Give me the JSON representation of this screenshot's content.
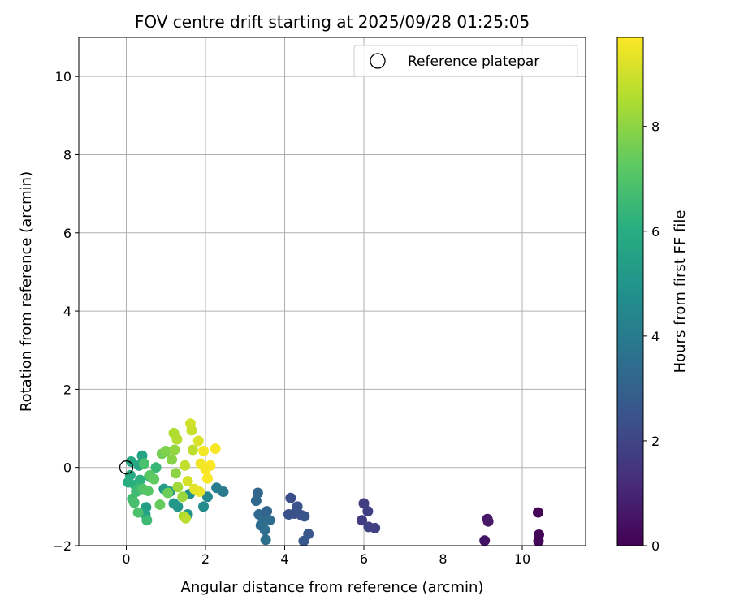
{
  "chart_data": {
    "type": "scatter",
    "title": "FOV centre drift starting at 2025/09/28 01:25:05",
    "xlabel": "Angular distance from reference (arcmin)",
    "ylabel": "Rotation from reference (arcmin)",
    "xlim": [
      -1.2,
      11.6
    ],
    "ylim": [
      -2.0,
      11.0
    ],
    "x_ticks": [
      0,
      2,
      4,
      6,
      8,
      10
    ],
    "y_ticks": [
      -2,
      0,
      2,
      4,
      6,
      8,
      10
    ],
    "grid": true,
    "legend": {
      "placement": "top-right",
      "entries": [
        "Reference platepar"
      ]
    },
    "reference_point": {
      "x": 0,
      "y": 0
    },
    "colorbar": {
      "label": "Hours from first FF file",
      "colormap": "viridis",
      "range": [
        0,
        9.7
      ],
      "ticks": [
        0,
        2,
        4,
        6,
        8
      ]
    },
    "series": [
      {
        "points": [
          {
            "x": 10.4,
            "y": -1.15,
            "t": 0.1
          },
          {
            "x": 10.42,
            "y": -1.72,
            "t": 0.15
          },
          {
            "x": 10.41,
            "y": -1.88,
            "t": 0.2
          },
          {
            "x": 9.12,
            "y": -1.32,
            "t": 0.6
          },
          {
            "x": 9.14,
            "y": -1.38,
            "t": 0.65
          },
          {
            "x": 9.05,
            "y": -1.87,
            "t": 0.5
          },
          {
            "x": 6.0,
            "y": -0.92,
            "t": 1.7
          },
          {
            "x": 6.1,
            "y": -1.12,
            "t": 1.8
          },
          {
            "x": 5.95,
            "y": -1.35,
            "t": 1.75
          },
          {
            "x": 6.12,
            "y": -1.52,
            "t": 1.9
          },
          {
            "x": 6.28,
            "y": -1.55,
            "t": 1.85
          },
          {
            "x": 4.15,
            "y": -0.78,
            "t": 2.3
          },
          {
            "x": 4.1,
            "y": -1.2,
            "t": 2.4
          },
          {
            "x": 4.25,
            "y": -1.18,
            "t": 2.35
          },
          {
            "x": 4.32,
            "y": -1.0,
            "t": 2.45
          },
          {
            "x": 4.42,
            "y": -1.22,
            "t": 2.5
          },
          {
            "x": 4.5,
            "y": -1.25,
            "t": 2.55
          },
          {
            "x": 4.6,
            "y": -1.7,
            "t": 2.6
          },
          {
            "x": 4.48,
            "y": -1.88,
            "t": 2.65
          },
          {
            "x": 3.32,
            "y": -0.65,
            "t": 3.2
          },
          {
            "x": 3.28,
            "y": -0.85,
            "t": 3.25
          },
          {
            "x": 3.35,
            "y": -1.2,
            "t": 3.3
          },
          {
            "x": 3.45,
            "y": -1.25,
            "t": 3.35
          },
          {
            "x": 3.55,
            "y": -1.12,
            "t": 3.1
          },
          {
            "x": 3.62,
            "y": -1.35,
            "t": 3.4
          },
          {
            "x": 3.4,
            "y": -1.48,
            "t": 3.45
          },
          {
            "x": 3.5,
            "y": -1.6,
            "t": 3.5
          },
          {
            "x": 3.52,
            "y": -1.85,
            "t": 3.55
          },
          {
            "x": 2.25,
            "y": 0.48,
            "t": 9.6
          },
          {
            "x": 2.12,
            "y": 0.05,
            "t": 9.7
          },
          {
            "x": 2.28,
            "y": -0.52,
            "t": 4.1
          },
          {
            "x": 2.45,
            "y": -0.62,
            "t": 4.0
          },
          {
            "x": 2.05,
            "y": -0.75,
            "t": 4.5
          },
          {
            "x": 1.95,
            "y": -1.0,
            "t": 4.6
          },
          {
            "x": 1.6,
            "y": -0.68,
            "t": 4.8
          },
          {
            "x": 1.55,
            "y": -1.2,
            "t": 4.9
          },
          {
            "x": 1.3,
            "y": -1.0,
            "t": 5.0
          },
          {
            "x": 1.2,
            "y": -0.92,
            "t": 5.1
          },
          {
            "x": 1.1,
            "y": -0.62,
            "t": 5.2
          },
          {
            "x": 0.95,
            "y": -0.55,
            "t": 5.3
          },
          {
            "x": 0.5,
            "y": -1.02,
            "t": 5.4
          },
          {
            "x": 0.48,
            "y": -1.2,
            "t": 5.5
          },
          {
            "x": 0.4,
            "y": 0.3,
            "t": 5.6
          },
          {
            "x": 0.32,
            "y": 0.05,
            "t": 5.7
          },
          {
            "x": 0.12,
            "y": 0.15,
            "t": 5.8
          },
          {
            "x": 0.1,
            "y": -0.2,
            "t": 5.9
          },
          {
            "x": 0.05,
            "y": -0.38,
            "t": 6.0
          },
          {
            "x": 0.22,
            "y": -0.45,
            "t": 6.1
          },
          {
            "x": 0.35,
            "y": -0.32,
            "t": 6.2
          },
          {
            "x": 0.58,
            "y": -0.22,
            "t": 6.3
          },
          {
            "x": 0.75,
            "y": 0.0,
            "t": 6.4
          },
          {
            "x": 0.3,
            "y": -0.55,
            "t": 6.5
          },
          {
            "x": 0.25,
            "y": -0.62,
            "t": 6.6
          },
          {
            "x": 0.15,
            "y": -0.8,
            "t": 6.7
          },
          {
            "x": 0.2,
            "y": -0.9,
            "t": 6.8
          },
          {
            "x": 0.3,
            "y": -1.15,
            "t": 6.9
          },
          {
            "x": 0.42,
            "y": -0.55,
            "t": 7.0
          },
          {
            "x": 0.55,
            "y": -0.6,
            "t": 7.1
          },
          {
            "x": 0.52,
            "y": -1.35,
            "t": 6.55
          },
          {
            "x": 0.6,
            "y": -0.2,
            "t": 7.2
          },
          {
            "x": 0.45,
            "y": 0.1,
            "t": 6.85
          },
          {
            "x": 0.7,
            "y": -0.3,
            "t": 7.3
          },
          {
            "x": 0.85,
            "y": -0.95,
            "t": 7.4
          },
          {
            "x": 0.9,
            "y": 0.35,
            "t": 7.6
          },
          {
            "x": 1.0,
            "y": 0.42,
            "t": 7.8
          },
          {
            "x": 1.05,
            "y": -0.65,
            "t": 7.5
          },
          {
            "x": 1.15,
            "y": 0.2,
            "t": 7.9
          },
          {
            "x": 1.22,
            "y": 0.45,
            "t": 8.1
          },
          {
            "x": 1.25,
            "y": -0.15,
            "t": 8.0
          },
          {
            "x": 1.2,
            "y": 0.88,
            "t": 8.5
          },
          {
            "x": 1.28,
            "y": 0.72,
            "t": 8.6
          },
          {
            "x": 1.3,
            "y": -0.5,
            "t": 8.3
          },
          {
            "x": 1.42,
            "y": -0.75,
            "t": 8.2
          },
          {
            "x": 1.45,
            "y": -1.25,
            "t": 8.4
          },
          {
            "x": 1.5,
            "y": -1.3,
            "t": 8.7
          },
          {
            "x": 1.48,
            "y": 0.05,
            "t": 8.8
          },
          {
            "x": 1.55,
            "y": -0.35,
            "t": 9.1
          },
          {
            "x": 1.62,
            "y": 1.12,
            "t": 9.0
          },
          {
            "x": 1.65,
            "y": 0.95,
            "t": 8.9
          },
          {
            "x": 1.68,
            "y": 0.45,
            "t": 8.75
          },
          {
            "x": 1.72,
            "y": -0.55,
            "t": 9.3
          },
          {
            "x": 1.82,
            "y": 0.68,
            "t": 9.2
          },
          {
            "x": 1.85,
            "y": -0.62,
            "t": 9.4
          },
          {
            "x": 1.88,
            "y": 0.1,
            "t": 9.5
          },
          {
            "x": 1.95,
            "y": 0.42,
            "t": 9.55
          },
          {
            "x": 2.0,
            "y": -0.05,
            "t": 9.6
          },
          {
            "x": 2.05,
            "y": -0.28,
            "t": 9.65
          }
        ]
      }
    ]
  }
}
